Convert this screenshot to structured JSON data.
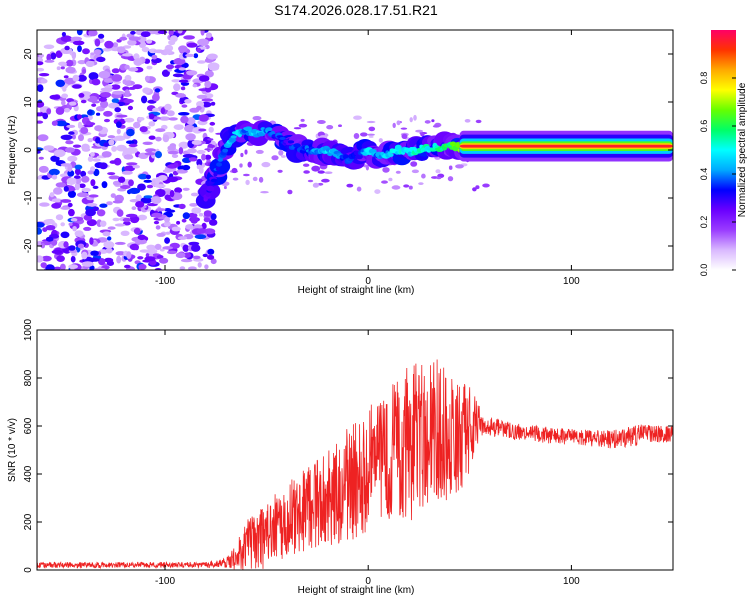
{
  "chart_data": [
    {
      "type": "heatmap",
      "title": "S174.2026.028.17.51.R21",
      "xlabel": "Height of straight line (km)",
      "ylabel": "Frequency (Hz)",
      "xlim": [
        -163,
        150
      ],
      "ylim": [
        -25,
        25
      ],
      "xticks": [
        -100,
        0,
        100
      ],
      "xtick_labels": [
        "-100",
        "0",
        "100"
      ],
      "yticks": [
        -20,
        -10,
        0,
        10,
        20
      ],
      "ytick_labels": [
        "-20",
        "-10",
        "0",
        "10",
        "20"
      ],
      "colorbar": {
        "label": "Normalized spectral amplitude",
        "range": [
          0,
          1
        ],
        "ticks": [
          0.0,
          0.2,
          0.4,
          0.6,
          0.8
        ],
        "tick_labels": [
          "0.0",
          "0.2",
          "0.4",
          "0.6",
          "0.8"
        ],
        "colors": [
          "#ffffff",
          "#d9b8ff",
          "#9a3cff",
          "#6a00ff",
          "#0000ff",
          "#00aaff",
          "#00ffff",
          "#00ff66",
          "#66ff00",
          "#ffff00",
          "#ffaa00",
          "#ff3300",
          "#ff0066"
        ]
      },
      "noise_region_x": [
        -163,
        -80
      ],
      "signal_track": {
        "x": [
          -80,
          -77,
          -74,
          -71,
          -68,
          -65,
          -60,
          -55,
          -50,
          -45,
          -40,
          -35,
          -30,
          -25,
          -20,
          -15,
          -10,
          -5,
          0,
          5,
          10,
          15,
          20,
          25,
          30,
          35,
          40,
          45,
          50,
          55,
          60,
          70,
          80,
          100,
          120,
          150
        ],
        "freq": [
          -10,
          -7,
          -4,
          0,
          2,
          3.5,
          4,
          3.5,
          4,
          3,
          1.5,
          0.5,
          0,
          -0.5,
          0,
          -1,
          -2,
          -1,
          0,
          -1,
          -1,
          0,
          -0.5,
          0,
          0.5,
          0.5,
          1,
          0.5,
          0.5,
          0.6,
          0.8,
          0.8,
          0.8,
          0.8,
          0.8,
          0.8
        ],
        "amplitude": [
          0.25,
          0.3,
          0.35,
          0.4,
          0.45,
          0.45,
          0.4,
          0.45,
          0.4,
          0.35,
          0.3,
          0.35,
          0.35,
          0.4,
          0.45,
          0.4,
          0.35,
          0.3,
          0.45,
          0.4,
          0.45,
          0.5,
          0.45,
          0.55,
          0.5,
          0.55,
          0.6,
          0.65,
          0.7,
          0.85,
          0.9,
          0.92,
          0.95,
          0.95,
          0.95,
          0.95
        ]
      }
    },
    {
      "type": "line",
      "title": "",
      "xlabel": "Height of straight line (km)",
      "ylabel": "SNR (10 * v/v)",
      "xlim": [
        -163,
        150
      ],
      "ylim": [
        0,
        1000
      ],
      "xticks": [
        -100,
        0,
        100
      ],
      "xtick_labels": [
        "-100",
        "0",
        "100"
      ],
      "yticks": [
        0,
        200,
        400,
        600,
        800,
        1000
      ],
      "ytick_labels": [
        "0",
        "200",
        "400",
        "600",
        "800",
        "1000"
      ],
      "series": [
        {
          "name": "SNR",
          "color": "#ee2222",
          "envelope_x": [
            -163,
            -80,
            -70,
            -65,
            -60,
            -55,
            -50,
            -45,
            -40,
            -35,
            -30,
            -25,
            -20,
            -15,
            -10,
            -5,
            0,
            5,
            10,
            15,
            20,
            25,
            30,
            35,
            40,
            45,
            50,
            55,
            60,
            70,
            80,
            90,
            100,
            110,
            120,
            130,
            140,
            150
          ],
          "envelope_mean": [
            20,
            22,
            30,
            60,
            100,
            120,
            150,
            180,
            200,
            230,
            260,
            280,
            300,
            330,
            360,
            380,
            420,
            450,
            480,
            520,
            540,
            560,
            570,
            580,
            570,
            560,
            590,
            620,
            600,
            580,
            570,
            560,
            555,
            550,
            545,
            560,
            570,
            560
          ],
          "envelope_spread": [
            12,
            12,
            20,
            60,
            110,
            130,
            140,
            150,
            160,
            170,
            180,
            190,
            200,
            220,
            240,
            250,
            260,
            280,
            300,
            320,
            340,
            330,
            320,
            300,
            280,
            260,
            180,
            60,
            40,
            35,
            35,
            35,
            35,
            35,
            40,
            45,
            40,
            40
          ]
        }
      ]
    }
  ]
}
